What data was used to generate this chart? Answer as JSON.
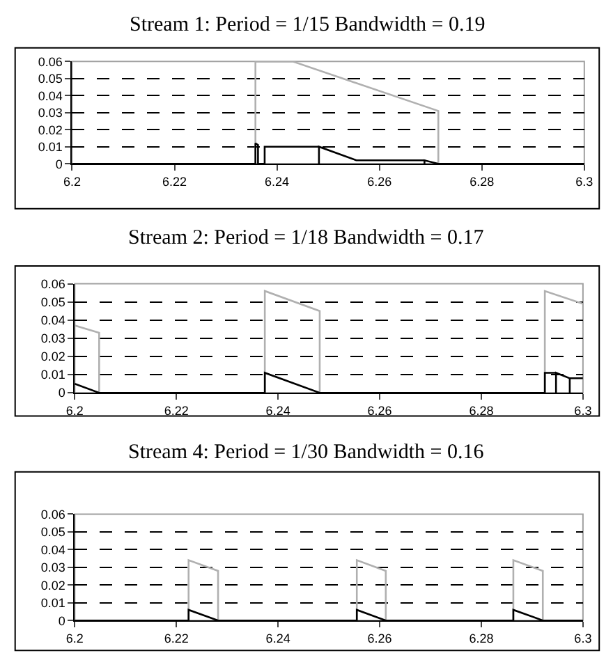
{
  "chart_data": [
    {
      "type": "line",
      "title": "Stream 1: Period = 1/15 Bandwidth = 0.19",
      "xlim": [
        6.2,
        6.3
      ],
      "xticks": [
        6.2,
        6.22,
        6.24,
        6.26,
        6.28,
        6.3
      ],
      "ylim": [
        0,
        0.06
      ],
      "yticks": [
        0,
        0.01,
        0.02,
        0.03,
        0.04,
        0.05,
        0.06
      ],
      "grid": "y",
      "marker": "none",
      "line_style": "solid",
      "series": [
        {
          "color": "#b0b0b0",
          "x": [
            6.2358,
            6.2358,
            6.2431,
            6.2715,
            6.2715
          ],
          "values": [
            0,
            0.06,
            0.06,
            0.031,
            0
          ]
        },
        {
          "color": "#000000",
          "x": [
            6.2,
            6.2358,
            6.2358,
            6.2363,
            6.2363,
            6.2376,
            6.2376,
            6.2482,
            6.2482,
            6.2482,
            6.2555,
            6.2688,
            6.2688,
            6.2688,
            6.2715,
            6.3
          ],
          "values": [
            0,
            0,
            0.012,
            0.011,
            0,
            0,
            0.01,
            0.01,
            0,
            0.01,
            0.002,
            0.002,
            0,
            0.002,
            0,
            0
          ]
        }
      ]
    },
    {
      "type": "line",
      "title": "Stream 2: Period = 1/18 Bandwidth = 0.17",
      "xlim": [
        6.2,
        6.3
      ],
      "xticks": [
        6.2,
        6.22,
        6.24,
        6.26,
        6.28,
        6.3
      ],
      "ylim": [
        0,
        0.06
      ],
      "yticks": [
        0,
        0.01,
        0.02,
        0.03,
        0.04,
        0.05,
        0.06
      ],
      "grid": "y",
      "marker": "none",
      "line_style": "solid",
      "series": [
        {
          "color": "#b0b0b0",
          "x": [
            6.2,
            6.2048,
            6.2048,
            6.2374,
            6.2374,
            6.2482,
            6.2482,
            6.2925,
            6.2925,
            6.3
          ],
          "values": [
            0.037,
            0.033,
            0,
            0,
            0.056,
            0.045,
            0,
            0,
            0.056,
            0.049
          ]
        },
        {
          "color": "#000000",
          "x": [
            6.2,
            6.2048,
            6.2374,
            6.2374,
            6.2482,
            6.2925,
            6.2925,
            6.2947,
            6.2947,
            6.2947,
            6.2974,
            6.2974,
            6.2974,
            6.3
          ],
          "values": [
            0.005,
            0,
            0,
            0.011,
            0,
            0,
            0.011,
            0.011,
            0,
            0.011,
            0.008,
            0,
            0.008,
            0.008
          ]
        }
      ]
    },
    {
      "type": "line",
      "title": "Stream 4: Period = 1/30 Bandwidth = 0.16",
      "xlim": [
        6.2,
        6.3
      ],
      "xticks": [
        6.2,
        6.22,
        6.24,
        6.26,
        6.28,
        6.3
      ],
      "ylim": [
        0,
        0.06
      ],
      "yticks": [
        0,
        0.01,
        0.02,
        0.03,
        0.04,
        0.05,
        0.06
      ],
      "grid": "y",
      "marker": "none",
      "line_style": "solid",
      "series": [
        {
          "color": "#b0b0b0",
          "x": [
            6.2224,
            6.2224,
            6.2282,
            6.2282,
            6.2555,
            6.2555,
            6.2612,
            6.2612,
            6.2863,
            6.2863,
            6.2921,
            6.2921
          ],
          "values": [
            0,
            0.034,
            0.028,
            0,
            0,
            0.034,
            0.028,
            0,
            0,
            0.034,
            0.028,
            0
          ]
        },
        {
          "color": "#000000",
          "x": [
            6.2,
            6.2224,
            6.2224,
            6.2282,
            6.2555,
            6.2555,
            6.2612,
            6.2863,
            6.2863,
            6.2921,
            6.3
          ],
          "values": [
            0,
            0,
            0.006,
            0,
            0,
            0.006,
            0,
            0,
            0.006,
            0,
            0
          ]
        }
      ]
    }
  ]
}
